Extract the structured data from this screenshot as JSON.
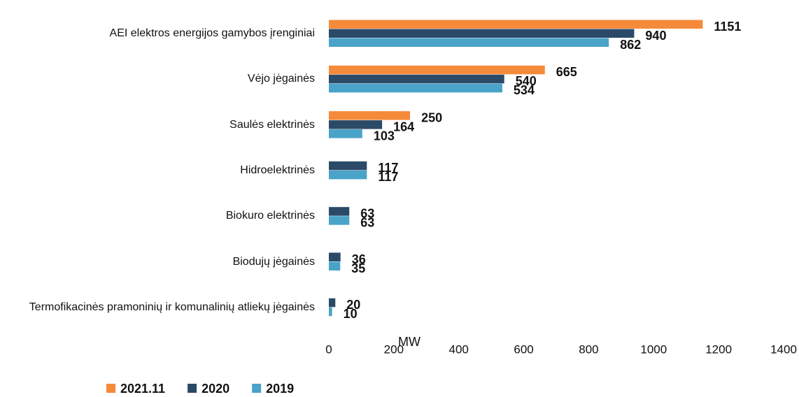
{
  "chart_data": {
    "type": "bar",
    "orientation": "horizontal",
    "categories": [
      "AEI elektros energijos gamybos įrenginiai",
      "Vėjo jėgainės",
      "Saulės elektrinės",
      "Hidroelektrinės",
      "Biokuro elektrinės",
      "Biodujų jėgainės",
      "Termofikacinės pramoninių ir komunalinių atliekų jėgainės"
    ],
    "series": [
      {
        "name": "2021.11",
        "color": "#f58a3a",
        "values": [
          1151,
          665,
          250,
          null,
          null,
          null,
          null
        ]
      },
      {
        "name": "2020",
        "color": "#2b4a68",
        "values": [
          940,
          540,
          164,
          117,
          63,
          36,
          20
        ]
      },
      {
        "name": "2019",
        "color": "#4aa3c8",
        "values": [
          862,
          534,
          103,
          117,
          63,
          35,
          10
        ]
      }
    ],
    "x_label": "MW",
    "xlim": [
      0,
      1400
    ],
    "xticks": [
      0,
      200,
      400,
      600,
      800,
      1000,
      1200,
      1400
    ],
    "legend": "bottom-left"
  }
}
